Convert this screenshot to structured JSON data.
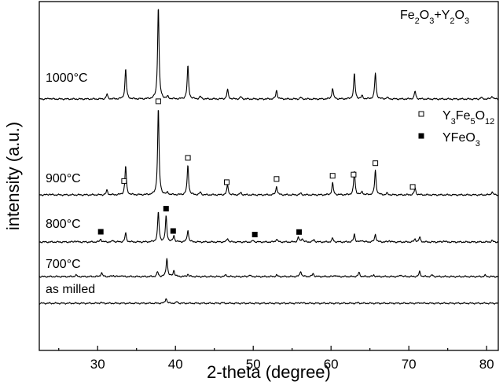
{
  "chart_data": {
    "type": "line",
    "title": "Fe2O3+Y2O3",
    "title_parts": [
      "Fe",
      "2",
      "O",
      "3",
      "+Y",
      "2",
      "O",
      "3"
    ],
    "xlabel": "2-theta (degree)",
    "ylabel": "intensity (a.u.)",
    "xlim": [
      22.5,
      81.5
    ],
    "xticks": [
      30,
      40,
      50,
      60,
      70,
      80
    ],
    "xticks_minor": [
      25,
      35,
      45,
      55,
      65,
      75
    ],
    "yticks": false,
    "legend": {
      "position": "right",
      "entries": [
        {
          "name_parts": [
            "Y",
            "3",
            "Fe",
            "5",
            "O",
            "12"
          ],
          "marker": "open-square"
        },
        {
          "name_parts": [
            "YFeO",
            "3"
          ],
          "marker": "filled-square"
        }
      ]
    },
    "series": [
      {
        "name": "1000°C",
        "label": "1000°C",
        "baseline": 1.0,
        "peaks": [
          [
            23.8,
            0.03
          ],
          [
            31.2,
            0.15
          ],
          [
            33.6,
            0.95
          ],
          [
            37.8,
            2.95
          ],
          [
            39.0,
            0.07
          ],
          [
            41.6,
            1.05
          ],
          [
            43.2,
            0.08
          ],
          [
            46.7,
            0.3
          ],
          [
            48.4,
            0.07
          ],
          [
            53.0,
            0.28
          ],
          [
            56.1,
            0.05
          ],
          [
            60.2,
            0.35
          ],
          [
            63.0,
            0.8
          ],
          [
            64.0,
            0.1
          ],
          [
            65.7,
            0.82
          ],
          [
            67.2,
            0.05
          ],
          [
            70.8,
            0.25
          ],
          [
            79.3,
            0.05
          ],
          [
            80.7,
            0.1
          ]
        ]
      },
      {
        "name": "900°C",
        "label": "900°C",
        "baseline": 1.0,
        "peaks": [
          [
            23.8,
            0.03
          ],
          [
            31.2,
            0.15
          ],
          [
            33.6,
            0.92
          ],
          [
            37.8,
            2.75
          ],
          [
            39.0,
            0.07
          ],
          [
            41.6,
            0.95
          ],
          [
            43.2,
            0.08
          ],
          [
            46.7,
            0.32
          ],
          [
            48.4,
            0.07
          ],
          [
            53.0,
            0.28
          ],
          [
            56.1,
            0.05
          ],
          [
            60.2,
            0.38
          ],
          [
            63.0,
            0.76
          ],
          [
            64.0,
            0.1
          ],
          [
            65.7,
            0.78
          ],
          [
            67.2,
            0.05
          ],
          [
            70.8,
            0.22
          ],
          [
            80.7,
            0.1
          ]
        ],
        "markers": [
          {
            "x": 33.4,
            "type": "Y3Fe5O12"
          },
          {
            "x": 37.8,
            "type": "Y3Fe5O12"
          },
          {
            "x": 41.6,
            "type": "Y3Fe5O12"
          },
          {
            "x": 46.6,
            "type": "Y3Fe5O12"
          },
          {
            "x": 53.0,
            "type": "Y3Fe5O12"
          },
          {
            "x": 60.2,
            "type": "Y3Fe5O12"
          },
          {
            "x": 62.9,
            "type": "Y3Fe5O12"
          },
          {
            "x": 65.7,
            "type": "Y3Fe5O12"
          },
          {
            "x": 70.5,
            "type": "Y3Fe5O12"
          }
        ]
      },
      {
        "name": "800°C",
        "label": "800°C",
        "baseline": 1.0,
        "peaks": [
          [
            27.1,
            0.04
          ],
          [
            30.4,
            0.1
          ],
          [
            32.0,
            0.05
          ],
          [
            33.6,
            0.28
          ],
          [
            37.8,
            0.95
          ],
          [
            38.8,
            0.82
          ],
          [
            39.8,
            0.2
          ],
          [
            41.6,
            0.38
          ],
          [
            46.7,
            0.12
          ],
          [
            50.0,
            0.05
          ],
          [
            53.0,
            0.1
          ],
          [
            55.8,
            0.15
          ],
          [
            56.3,
            0.12
          ],
          [
            57.8,
            0.08
          ],
          [
            60.2,
            0.12
          ],
          [
            63.0,
            0.25
          ],
          [
            64.0,
            0.06
          ],
          [
            65.7,
            0.25
          ],
          [
            67.5,
            0.05
          ],
          [
            70.8,
            0.1
          ],
          [
            71.4,
            0.15
          ],
          [
            74.5,
            0.04
          ],
          [
            80.7,
            0.05
          ]
        ],
        "markers": [
          {
            "x": 30.4,
            "type": "YFeO3"
          },
          {
            "x": 38.8,
            "type": "YFeO3"
          },
          {
            "x": 39.7,
            "type": "YFeO3"
          },
          {
            "x": 50.2,
            "type": "YFeO3"
          },
          {
            "x": 55.9,
            "type": "YFeO3"
          }
        ]
      },
      {
        "name": "700°C",
        "label": "700°C",
        "baseline": 1.0,
        "peaks": [
          [
            27.2,
            0.05
          ],
          [
            30.5,
            0.13
          ],
          [
            32.0,
            0.04
          ],
          [
            33.0,
            0.04
          ],
          [
            37.7,
            0.15
          ],
          [
            38.9,
            0.6
          ],
          [
            39.8,
            0.2
          ],
          [
            41.6,
            0.08
          ],
          [
            46.5,
            0.06
          ],
          [
            49.5,
            0.05
          ],
          [
            53.0,
            0.05
          ],
          [
            56.1,
            0.18
          ],
          [
            57.7,
            0.1
          ],
          [
            60.5,
            0.05
          ],
          [
            63.6,
            0.13
          ],
          [
            65.5,
            0.05
          ],
          [
            69.0,
            0.06
          ],
          [
            71.4,
            0.16
          ],
          [
            73.0,
            0.05
          ],
          [
            79.8,
            0.04
          ]
        ]
      },
      {
        "name": "as milled",
        "label": "as milled",
        "baseline": 1.0,
        "peaks": [
          [
            30.4,
            0.03
          ],
          [
            38.8,
            0.17
          ],
          [
            40.2,
            0.05
          ],
          [
            46.0,
            0.02
          ],
          [
            56.1,
            0.03
          ],
          [
            63.5,
            0.02
          ],
          [
            71.5,
            0.02
          ]
        ]
      }
    ]
  },
  "colors": {
    "line": "#000000",
    "background": "#ffffff"
  }
}
